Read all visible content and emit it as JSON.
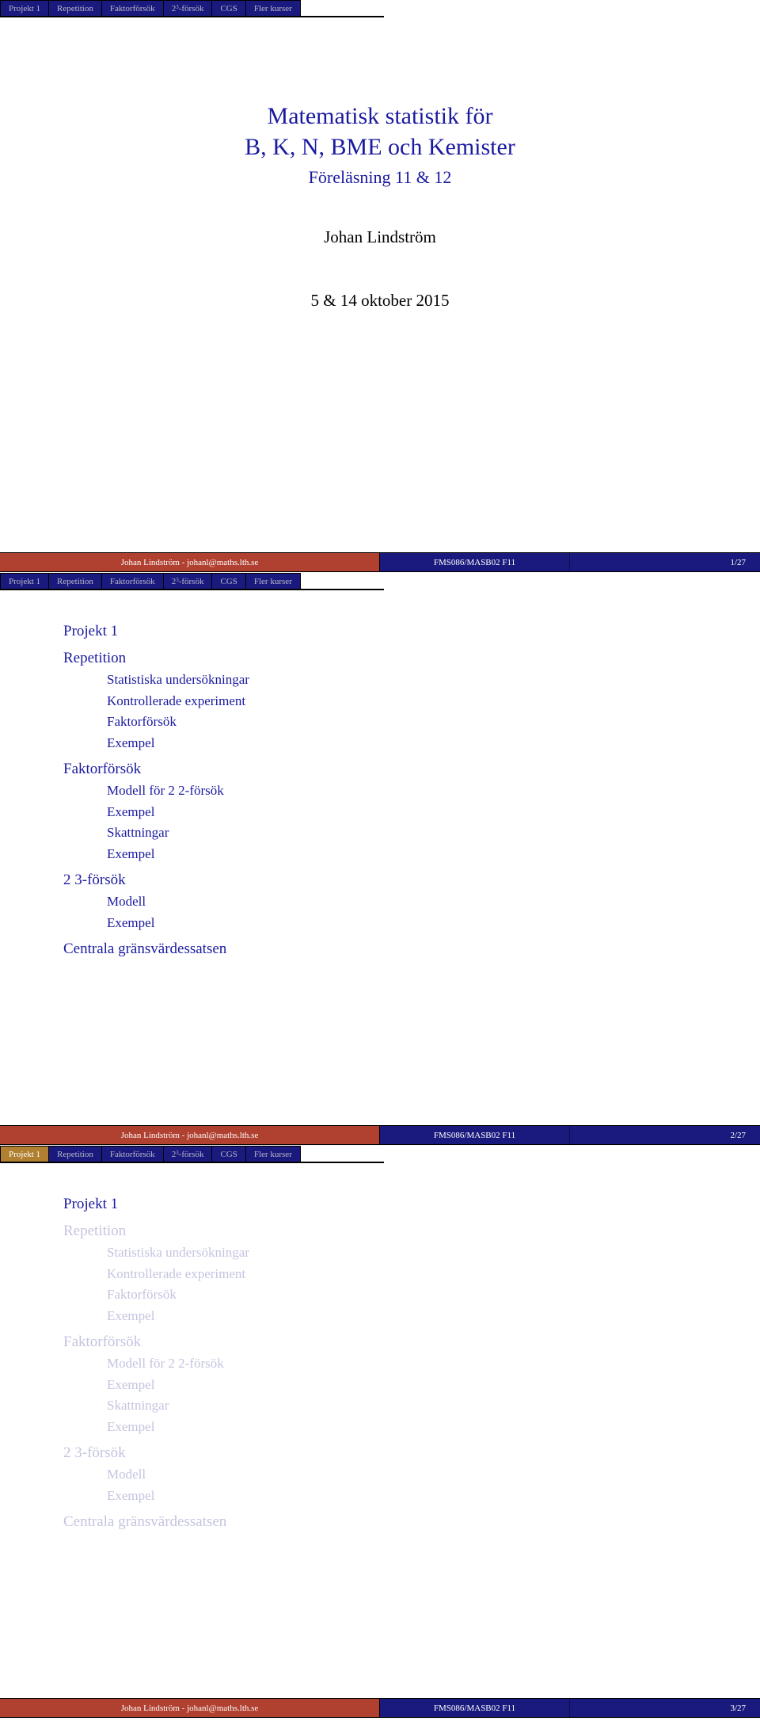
{
  "colors": {
    "nav_bg": "#1a1a7e",
    "nav_inactive_text": "#b8b8c8",
    "nav_active_bg": "#b08030",
    "nav_active_text": "#ffffff",
    "title_color": "#1a1aa0",
    "body_text": "#000000",
    "footer_left_bg": "#b04030",
    "footer_bg": "#1a1a7e",
    "footer_text": "#ffffff",
    "dim_text": "#c4c4e0",
    "page_bg": "#ffffff"
  },
  "nav": {
    "tabs": [
      {
        "label": "Projekt 1"
      },
      {
        "label": "Repetition"
      },
      {
        "label": "Faktorförsök"
      },
      {
        "label_prefix": "2",
        "label_sup": "3",
        "label_suffix": "-försök"
      },
      {
        "label": "CGS"
      },
      {
        "label": "Fler kurser"
      }
    ]
  },
  "slide1": {
    "title_l1": "Matematisk statistik för",
    "title_l2": "B, K, N, BME och Kemister",
    "subtitle": "Föreläsning 11 & 12",
    "author": "Johan Lindström",
    "date": "5 & 14 oktober 2015"
  },
  "toc": {
    "s1": "Projekt 1",
    "s2": "Repetition",
    "s2_1": "Statistiska undersökningar",
    "s2_2": "Kontrollerade experiment",
    "s2_3": "Faktorförsök",
    "s2_4": "Exempel",
    "s3": "Faktorförsök",
    "s3_1": "Modell för 2 2-försök",
    "s3_2": "Exempel",
    "s3_3": "Skattningar",
    "s3_4": "Exempel",
    "s4": "2 3-försök",
    "s4_1": "Modell",
    "s4_2": "Exempel",
    "s5": "Centrala gränsvärdessatsen"
  },
  "footer": {
    "author": "Johan Lindström - johanl@maths.lth.se",
    "course": "FMS086/MASB02 F11",
    "page1": "1/27",
    "page2": "2/27",
    "page3": "3/27"
  }
}
